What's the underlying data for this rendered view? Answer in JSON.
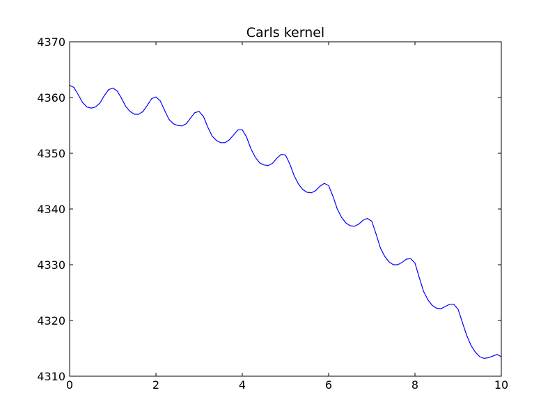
{
  "chart_data": {
    "type": "line",
    "title": "Carls kernel",
    "xlabel": "",
    "ylabel": "",
    "xlim": [
      0,
      10
    ],
    "ylim": [
      4310,
      4370
    ],
    "xticks": [
      0,
      2,
      4,
      6,
      8,
      10
    ],
    "yticks": [
      4310,
      4320,
      4330,
      4340,
      4350,
      4360,
      4370
    ],
    "grid": false,
    "legend": "none",
    "series": [
      {
        "color": "#0000ff",
        "points": [
          [
            0.0,
            4362.2
          ],
          [
            0.1,
            4361.8
          ],
          [
            0.2,
            4360.5
          ],
          [
            0.3,
            4359.1
          ],
          [
            0.4,
            4358.3
          ],
          [
            0.5,
            4358.1
          ],
          [
            0.6,
            4358.3
          ],
          [
            0.7,
            4359.0
          ],
          [
            0.8,
            4360.3
          ],
          [
            0.9,
            4361.4
          ],
          [
            1.0,
            4361.7
          ],
          [
            1.1,
            4361.2
          ],
          [
            1.2,
            4359.9
          ],
          [
            1.3,
            4358.4
          ],
          [
            1.4,
            4357.5
          ],
          [
            1.5,
            4357.0
          ],
          [
            1.6,
            4357.0
          ],
          [
            1.7,
            4357.5
          ],
          [
            1.8,
            4358.6
          ],
          [
            1.9,
            4359.8
          ],
          [
            2.0,
            4360.1
          ],
          [
            2.1,
            4359.4
          ],
          [
            2.2,
            4357.7
          ],
          [
            2.3,
            4356.1
          ],
          [
            2.4,
            4355.3
          ],
          [
            2.5,
            4355.0
          ],
          [
            2.6,
            4354.9
          ],
          [
            2.7,
            4355.3
          ],
          [
            2.8,
            4356.3
          ],
          [
            2.9,
            4357.3
          ],
          [
            3.0,
            4357.5
          ],
          [
            3.1,
            4356.6
          ],
          [
            3.2,
            4354.7
          ],
          [
            3.3,
            4353.1
          ],
          [
            3.4,
            4352.3
          ],
          [
            3.5,
            4351.9
          ],
          [
            3.6,
            4351.9
          ],
          [
            3.7,
            4352.4
          ],
          [
            3.8,
            4353.3
          ],
          [
            3.9,
            4354.2
          ],
          [
            4.0,
            4354.2
          ],
          [
            4.1,
            4352.9
          ],
          [
            4.2,
            4350.8
          ],
          [
            4.3,
            4349.3
          ],
          [
            4.4,
            4348.3
          ],
          [
            4.5,
            4347.9
          ],
          [
            4.6,
            4347.8
          ],
          [
            4.7,
            4348.2
          ],
          [
            4.8,
            4349.1
          ],
          [
            4.9,
            4349.8
          ],
          [
            5.0,
            4349.7
          ],
          [
            5.1,
            4348.1
          ],
          [
            5.2,
            4346.0
          ],
          [
            5.3,
            4344.5
          ],
          [
            5.4,
            4343.5
          ],
          [
            5.5,
            4343.0
          ],
          [
            5.6,
            4342.9
          ],
          [
            5.7,
            4343.3
          ],
          [
            5.8,
            4344.1
          ],
          [
            5.9,
            4344.6
          ],
          [
            6.0,
            4344.2
          ],
          [
            6.1,
            4342.3
          ],
          [
            6.2,
            4340.0
          ],
          [
            6.3,
            4338.5
          ],
          [
            6.4,
            4337.5
          ],
          [
            6.5,
            4337.0
          ],
          [
            6.6,
            4336.9
          ],
          [
            6.7,
            4337.3
          ],
          [
            6.8,
            4338.0
          ],
          [
            6.9,
            4338.3
          ],
          [
            7.0,
            4337.8
          ],
          [
            7.1,
            4335.5
          ],
          [
            7.2,
            4333.0
          ],
          [
            7.3,
            4331.5
          ],
          [
            7.4,
            4330.5
          ],
          [
            7.5,
            4330.0
          ],
          [
            7.6,
            4330.0
          ],
          [
            7.7,
            4330.4
          ],
          [
            7.8,
            4331.0
          ],
          [
            7.9,
            4331.1
          ],
          [
            8.0,
            4330.3
          ],
          [
            8.1,
            4327.7
          ],
          [
            8.2,
            4325.2
          ],
          [
            8.3,
            4323.7
          ],
          [
            8.4,
            4322.7
          ],
          [
            8.5,
            4322.2
          ],
          [
            8.6,
            4322.1
          ],
          [
            8.7,
            4322.5
          ],
          [
            8.8,
            4322.9
          ],
          [
            8.9,
            4322.9
          ],
          [
            9.0,
            4322.0
          ],
          [
            9.1,
            4319.6
          ],
          [
            9.2,
            4317.3
          ],
          [
            9.3,
            4315.5
          ],
          [
            9.4,
            4314.3
          ],
          [
            9.5,
            4313.5
          ],
          [
            9.6,
            4313.2
          ],
          [
            9.7,
            4313.3
          ],
          [
            9.8,
            4313.6
          ],
          [
            9.9,
            4313.9
          ],
          [
            10.0,
            4313.5
          ]
        ]
      }
    ]
  }
}
